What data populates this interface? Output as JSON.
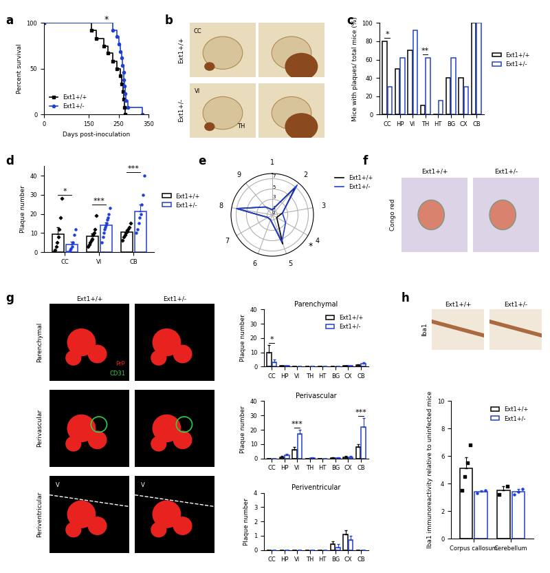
{
  "chart_data": [
    {
      "panel": "a",
      "type": "line",
      "x_label": "Days post-inoculation",
      "y_label": "Percent survival",
      "xlim": [
        0,
        350
      ],
      "xticks": [
        0,
        150,
        250,
        350
      ],
      "ylim": [
        0,
        100
      ],
      "yticks": [
        0,
        50,
        100
      ],
      "legend": "lower left",
      "annotations": [
        {
          "text": "*"
        }
      ],
      "series": [
        {
          "name": "Ext1+/+",
          "color": "#000000",
          "marker": "square",
          "line_style": "steps",
          "x": [
            0,
            160,
            175,
            200,
            215,
            230,
            245,
            255,
            260,
            265,
            268,
            270,
            272
          ],
          "values": [
            100,
            92,
            83,
            75,
            67,
            58,
            50,
            42,
            33,
            25,
            17,
            8,
            0
          ]
        },
        {
          "name": "Ext1+/-",
          "color": "#1f3fd6",
          "marker": "circle",
          "line_style": "steps",
          "x": [
            0,
            230,
            245,
            250,
            255,
            260,
            263,
            266,
            268,
            270,
            272,
            275,
            280,
            330
          ],
          "values": [
            100,
            92,
            85,
            77,
            69,
            62,
            54,
            46,
            38,
            31,
            23,
            15,
            8,
            0
          ]
        }
      ]
    },
    {
      "panel": "c",
      "type": "bar",
      "y_label": "Mice with plaques/ total mice (%)",
      "categories": [
        "CC",
        "HP",
        "VI",
        "TH",
        "HT",
        "BG",
        "CX",
        "CB"
      ],
      "ylim": [
        0,
        100
      ],
      "yticks": [
        0,
        20,
        40,
        60,
        80,
        100
      ],
      "legend": "right",
      "annotations": [
        {
          "text": "*",
          "category": "CC"
        },
        {
          "text": "**",
          "category": "TH"
        }
      ],
      "series": [
        {
          "name": "Ext1+/+",
          "color": "#000000",
          "values": [
            80,
            50,
            70,
            10,
            0,
            40,
            40,
            100
          ]
        },
        {
          "name": "Ext1+/-",
          "color": "#1f3fd6",
          "values": [
            30,
            62,
            92,
            62,
            15,
            62,
            30,
            100
          ]
        }
      ]
    },
    {
      "panel": "d",
      "type": "bar",
      "y_label": "Plaque number",
      "categories": [
        "CC",
        "VI",
        "CB"
      ],
      "ylim": [
        0,
        45
      ],
      "yticks": [
        0,
        10,
        20,
        30,
        40
      ],
      "legend": "right",
      "annotations": [
        {
          "text": "*",
          "category": "CC"
        },
        {
          "text": "***",
          "category": "VI"
        },
        {
          "text": "***",
          "category": "CB"
        }
      ],
      "series": [
        {
          "name": "Ext1+/+",
          "color": "#000000",
          "marker": "diamond",
          "values": [
            9.4,
            8.3,
            10.5
          ],
          "error": [
            3.5,
            1.5,
            1.1
          ],
          "points": [
            [
              0,
              1,
              3,
              5,
              8,
              12,
              18,
              28
            ],
            [
              3,
              4,
              5,
              6,
              7,
              9,
              10,
              12,
              19
            ],
            [
              6,
              8,
              9,
              10,
              11,
              12,
              13,
              15
            ]
          ]
        },
        {
          "name": "Ext1+/-",
          "color": "#1f3fd6",
          "marker": "circle",
          "values": [
            4,
            14.1,
            21.3
          ],
          "error": [
            1.6,
            1.5,
            3.7
          ],
          "points": [
            [
              0,
              0,
              1,
              2,
              3,
              5,
              9,
              12
            ],
            [
              5,
              8,
              10,
              12,
              13,
              14,
              15,
              17,
              18,
              20,
              23
            ],
            [
              10,
              12,
              15,
              18,
              20,
              25,
              30,
              40
            ]
          ]
        }
      ]
    },
    {
      "panel": "e",
      "type": "radar",
      "categories": [
        "1",
        "2",
        "3",
        "4",
        "5",
        "6",
        "7",
        "8",
        "9"
      ],
      "ylim": [
        0,
        8
      ],
      "yticks": [
        0,
        1,
        3,
        5,
        7
      ],
      "legend": "right",
      "annotations": [
        {
          "text": "*",
          "category": "4"
        }
      ],
      "series": [
        {
          "name": "Ext1+/+",
          "color": "#000000",
          "values": [
            1,
            7,
            2,
            1,
            6,
            1,
            1,
            7,
            2
          ]
        },
        {
          "name": "Ext1+/-",
          "color": "#1f3fd6",
          "values": [
            1,
            7.5,
            2,
            3,
            5.5,
            1,
            1,
            7,
            2
          ]
        }
      ]
    },
    {
      "panel": "g",
      "type": "bar",
      "title": "Parenchymal",
      "y_label": "Plaque number",
      "categories": [
        "CC",
        "HP",
        "VI",
        "TH",
        "HT",
        "BG",
        "CX",
        "CB"
      ],
      "ylim": [
        0,
        40
      ],
      "yticks": [
        0,
        10,
        20,
        30,
        40
      ],
      "legend": "upper right",
      "annotations": [
        {
          "text": "*",
          "category": "CC"
        }
      ],
      "series": [
        {
          "name": "Ext1+/+",
          "color": "#000000",
          "values": [
            10,
            0.5,
            0,
            0,
            0,
            0,
            0.5,
            1
          ],
          "error": [
            5,
            0.3,
            0,
            0,
            0,
            0,
            0.3,
            0.5
          ]
        },
        {
          "name": "Ext1+/-",
          "color": "#1f3fd6",
          "values": [
            3,
            0.5,
            0,
            0,
            0,
            0,
            0.5,
            2
          ],
          "error": [
            2,
            0.3,
            0,
            0,
            0,
            0,
            0.3,
            1
          ]
        }
      ]
    },
    {
      "panel": "g",
      "type": "bar",
      "title": "Perivascular",
      "y_label": "Plaque number",
      "categories": [
        "CC",
        "HP",
        "VI",
        "TH",
        "HT",
        "BG",
        "CX",
        "CB"
      ],
      "ylim": [
        0,
        40
      ],
      "yticks": [
        0,
        10,
        20,
        30,
        40
      ],
      "annotations": [
        {
          "text": "***",
          "category": "VI"
        },
        {
          "text": "***",
          "category": "CB"
        }
      ],
      "series": [
        {
          "name": "Ext1+/+",
          "color": "#000000",
          "values": [
            0,
            1,
            6,
            0,
            0,
            0.5,
            1,
            8
          ],
          "error": [
            0,
            0.5,
            2,
            0,
            0,
            0.3,
            0.5,
            2
          ]
        },
        {
          "name": "Ext1+/-",
          "color": "#1f3fd6",
          "values": [
            0,
            2,
            17,
            0.5,
            0,
            0.5,
            1,
            22
          ],
          "error": [
            0,
            1,
            3,
            0.3,
            0,
            0.3,
            0.5,
            6
          ]
        }
      ]
    },
    {
      "panel": "g",
      "type": "bar",
      "title": "Periventricular",
      "y_label": "Plaque number",
      "categories": [
        "CC",
        "HP",
        "VI",
        "TH",
        "HT",
        "BG",
        "CX",
        "CB"
      ],
      "ylim": [
        0,
        4
      ],
      "yticks": [
        0,
        1,
        2,
        3,
        4
      ],
      "series": [
        {
          "name": "Ext1+/+",
          "color": "#000000",
          "values": [
            0,
            0,
            0,
            0,
            0,
            0.4,
            1.1,
            0
          ],
          "error": [
            0,
            0,
            0,
            0,
            0,
            0.2,
            0.3,
            0
          ]
        },
        {
          "name": "Ext1+/-",
          "color": "#1f3fd6",
          "values": [
            0,
            0,
            0,
            0,
            0,
            0.2,
            0.7,
            0
          ],
          "error": [
            0,
            0,
            0,
            0,
            0,
            0.2,
            0.3,
            0
          ]
        }
      ]
    },
    {
      "panel": "h",
      "type": "bar",
      "y_label": "Iba1 immunoreactivity relative to uninfected mice",
      "categories": [
        "Corpus callosum",
        "Cerebellum"
      ],
      "ylim": [
        0,
        10
      ],
      "yticks": [
        0,
        2,
        4,
        6,
        8,
        10
      ],
      "legend": "upper right",
      "series": [
        {
          "name": "Ext1+/+",
          "color": "#000000",
          "marker": "square",
          "values": [
            5.1,
            3.5
          ],
          "error": [
            0.8,
            0.3
          ],
          "points": [
            [
              3.5,
              4.5,
              5.5,
              6.8
            ],
            [
              3.2,
              3.8
            ]
          ]
        },
        {
          "name": "Ext1+/-",
          "color": "#1f3fd6",
          "marker": "circle",
          "values": [
            3.4,
            3.4
          ],
          "error": [
            0.1,
            0.2
          ],
          "points": [
            [
              3.3,
              3.5
            ],
            [
              3.2,
              3.4,
              3.6
            ]
          ]
        }
      ]
    }
  ],
  "images": [
    {
      "panel": "b",
      "rows": [
        "Ext1+/+",
        "Ext1+/-"
      ],
      "region_labels": [
        [
          "CC"
        ],
        [],
        [
          "VI",
          "TH"
        ],
        []
      ]
    },
    {
      "panel": "f",
      "columns": [
        "Ext1+/+",
        "Ext1+/-"
      ],
      "side_label": "Congo red"
    },
    {
      "panel": "g",
      "columns": [
        "Ext1+/+",
        "Ext1+/-"
      ],
      "rows": [
        "Parenchymal",
        "Perivascular",
        "Periventricular"
      ],
      "stain_labels": [
        "PrP",
        "CD31"
      ],
      "ventricle_label": "V"
    },
    {
      "panel": "h",
      "columns": [
        "Ext1+/+",
        "Ext1+/-"
      ],
      "side_label": "Iba1"
    }
  ]
}
